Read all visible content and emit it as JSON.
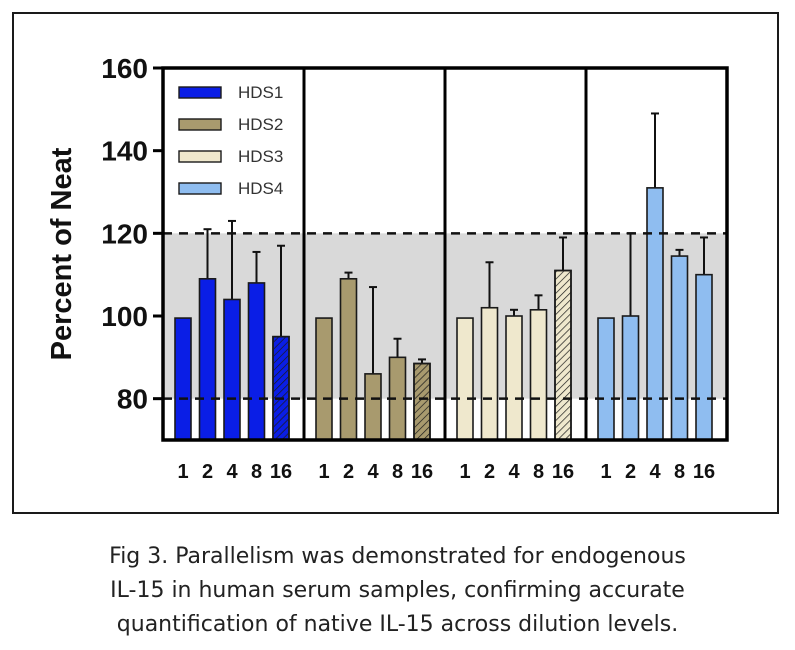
{
  "chart_data": {
    "type": "bar",
    "ylabel": "Percent of Neat",
    "ylim": [
      70,
      160
    ],
    "yticks": [
      80,
      100,
      120,
      140,
      160
    ],
    "categories": [
      "1",
      "2",
      "4",
      "8",
      "16"
    ],
    "reference_band": [
      80,
      120
    ],
    "legend_position": "top-left",
    "series": [
      {
        "name": "HDS1",
        "color": "#0a1ee6",
        "values": [
          99.5,
          109,
          104,
          108,
          95
        ],
        "error": [
          0,
          12,
          19,
          7.5,
          22
        ],
        "hatched_last": true
      },
      {
        "name": "HDS2",
        "color": "#a89a6e",
        "values": [
          99.5,
          109,
          86,
          90,
          88.5
        ],
        "error": [
          0,
          1.5,
          21,
          4.5,
          1
        ],
        "hatched_last": true
      },
      {
        "name": "HDS3",
        "color": "#efe8cd",
        "values": [
          99.5,
          102,
          100,
          101.5,
          111
        ],
        "error": [
          0,
          11,
          1.5,
          3.5,
          8
        ],
        "hatched_last": true
      },
      {
        "name": "HDS4",
        "color": "#8fbdf0",
        "values": [
          99.5,
          100,
          131,
          114.5,
          110
        ],
        "error": [
          0,
          20,
          18,
          1.5,
          9
        ],
        "hatched_last": false
      }
    ]
  },
  "caption": {
    "line1": "Fig 3. Parallelism was demonstrated for endogenous",
    "line2": "IL-15 in human serum samples, confirming accurate",
    "line3": "quantification of native IL-15 across dilution levels."
  }
}
